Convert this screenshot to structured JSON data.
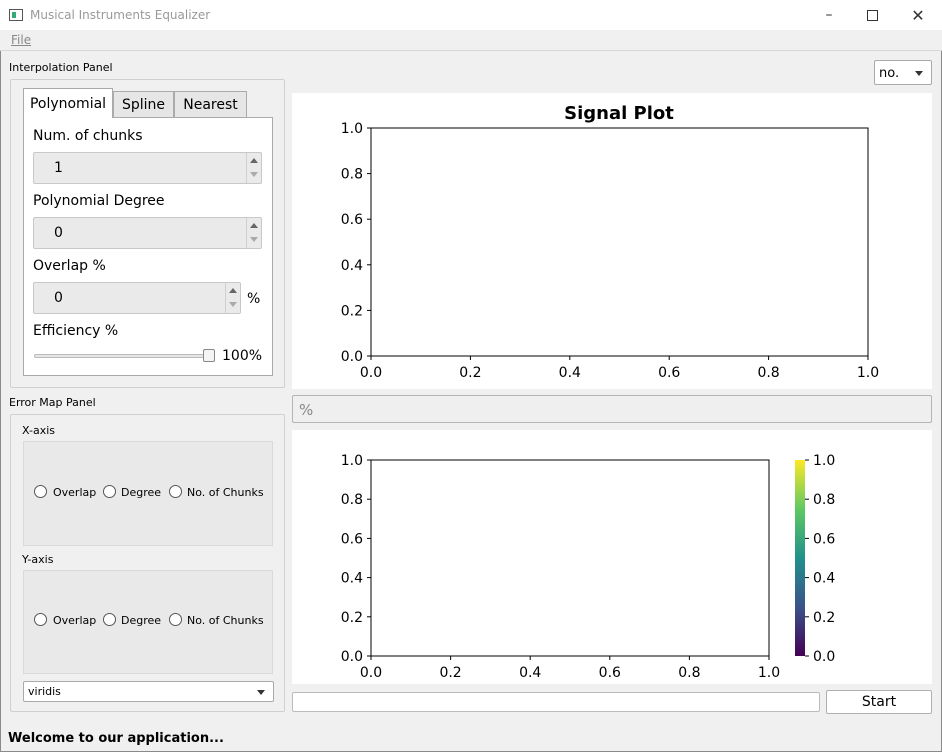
{
  "window": {
    "title": "Musical Instruments Equalizer"
  },
  "menu": {
    "file": "File"
  },
  "interpolation": {
    "panel_title": "Interpolation Panel",
    "tabs": [
      "Polynomial",
      "Spline",
      "Nearest"
    ],
    "num_chunks_label": "Num. of chunks",
    "num_chunks_value": "1",
    "poly_degree_label": "Polynomial Degree",
    "poly_degree_value": "0",
    "overlap_label": "Overlap %",
    "overlap_value": "0",
    "overlap_unit": "%",
    "efficiency_label": "Efficiency %",
    "efficiency_value": "100%",
    "efficiency_fraction": 1.0
  },
  "error_map": {
    "panel_title": "Error Map Panel",
    "x_axis_title": "X-axis",
    "y_axis_title": "Y-axis",
    "options": [
      "Overlap",
      "Degree",
      "No. of Chunks"
    ],
    "colormap": "viridis"
  },
  "top_combo": "no.",
  "signal_plot": {
    "title": "Signal Plot",
    "y_ticks": [
      "1.0",
      "0.8",
      "0.6",
      "0.4",
      "0.2",
      "0.0"
    ],
    "x_ticks": [
      "0.0",
      "0.2",
      "0.4",
      "0.6",
      "0.8",
      "1.0"
    ]
  },
  "percent_field": {
    "placeholder": "%"
  },
  "error_plot": {
    "y_ticks": [
      "1.0",
      "0.8",
      "0.6",
      "0.4",
      "0.2",
      "0.0"
    ],
    "x_ticks": [
      "0.0",
      "0.2",
      "0.4",
      "0.6",
      "0.8",
      "1.0"
    ],
    "colorbar_ticks": [
      "1.0",
      "0.8",
      "0.6",
      "0.4",
      "0.2",
      "0.0"
    ],
    "colorbar_colors": [
      "#fde725",
      "#5ec962",
      "#21918c",
      "#3b528b",
      "#440154"
    ]
  },
  "progress": {
    "value": 0
  },
  "start_button": "Start",
  "status": "Welcome to our application..."
}
